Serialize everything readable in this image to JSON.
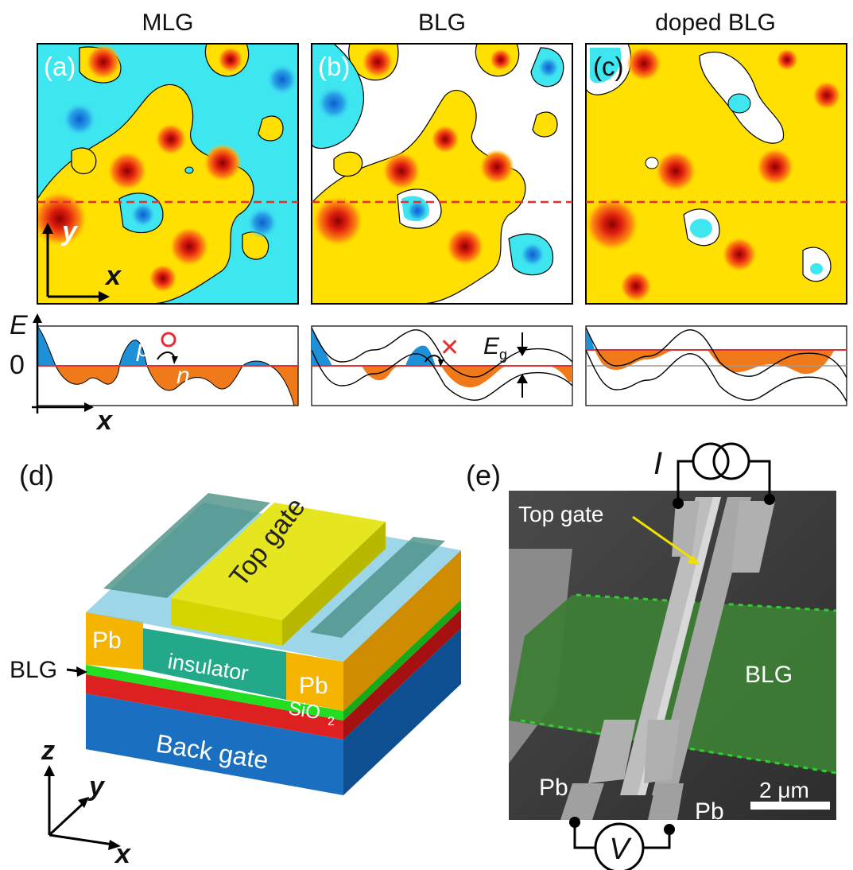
{
  "top_panels": {
    "a": {
      "title": "MLG",
      "label": "(a)"
    },
    "b": {
      "title": "BLG",
      "label": "(b)"
    },
    "c": {
      "title": "doped BLG",
      "label": "(c)"
    }
  },
  "axes": {
    "y": "y",
    "x": "x",
    "E": "E",
    "zero": "0"
  },
  "profile_labels": {
    "p": "p",
    "n": "n",
    "circle": "○",
    "cross": "✕",
    "Eg": "E",
    "Eg_sub": "g"
  },
  "device": {
    "label": "(d)",
    "top_gate": "Top gate",
    "pb_left": "Pb",
    "pb_right": "Pb",
    "insulator": "insulator",
    "blg": "BLG",
    "sio2": "SiO",
    "sio2_sub": "2",
    "back_gate": "Back gate",
    "ax_z": "z",
    "ax_y": "y",
    "ax_x": "x"
  },
  "sem": {
    "label": "(e)",
    "I": "I",
    "V": "V",
    "top_gate": "Top gate",
    "blg": "BLG",
    "pb_left": "Pb",
    "pb_right": "Pb",
    "scale": "2 μm"
  },
  "colors": {
    "hole": "#1e90d8",
    "electron": "#f07a1a",
    "cut": "#e63030",
    "insulator_cap": "#7cc8e0",
    "top_gate": "#e6e620",
    "pb": "#f5b400",
    "blg": "#22dd22",
    "sio2": "#dd2020",
    "back_gate": "#1a6fc0",
    "sem_blg": "#3d7d36"
  }
}
